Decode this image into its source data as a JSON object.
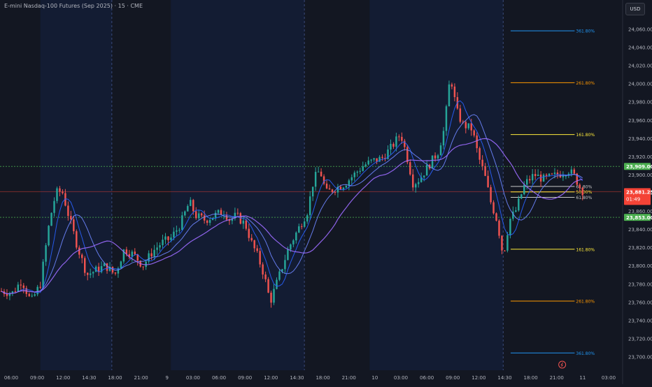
{
  "header": {
    "title": "E-mini Nasdaq-100 Futures (Sep 2025) · 15 · CME",
    "currency": "USD"
  },
  "colors": {
    "background": "#131722",
    "session_band": "#131c33",
    "up": "#26a69a",
    "down": "#ef5350",
    "ma_fast": "#2962ff",
    "ma_mid": "#6e86ff",
    "ma_slow": "#9c6bff",
    "fib_blue": "#2196f3",
    "fib_orange": "#ff9800",
    "fib_yellow": "#ffeb3b",
    "level_green": "#4caf50",
    "level_red": "#f44336"
  },
  "chart_data": {
    "type": "candlestick",
    "title": "E-mini Nasdaq-100 Futures (Sep 2025) · 15 · CME",
    "ylim": [
      23685,
      24075
    ],
    "y_ticks": [
      "23,700.00",
      "23,720.00",
      "23,740.00",
      "23,760.00",
      "23,780.00",
      "23,800.00",
      "23,820.00",
      "23,840.00",
      "23,860.00",
      "23,880.00",
      "23,900.00",
      "23,920.00",
      "23,940.00",
      "23,960.00",
      "23,980.00",
      "24,000.00",
      "24,020.00",
      "24,040.00",
      "24,060.00"
    ],
    "x_labels": [
      "06:00",
      "09:00",
      "12:00",
      "14:30",
      "18:00",
      "21:00",
      "9",
      "03:00",
      "06:00",
      "09:00",
      "12:00",
      "14:30",
      "18:00",
      "21:00",
      "10",
      "03:00",
      "06:00",
      "09:00",
      "12:00",
      "14:30",
      "18:00",
      "21:00",
      "11",
      "03:00"
    ],
    "current_price": "23,881.25",
    "countdown": "01:49",
    "horizontal_levels": [
      {
        "price": 23909,
        "label": "23,909.00",
        "color": "#4caf50",
        "style": "dotted"
      },
      {
        "price": 23853,
        "label": "23,853.00",
        "color": "#4caf50",
        "style": "dotted"
      },
      {
        "price": 23881.25,
        "label": "23,881.25",
        "color": "#f44336",
        "style": "solid"
      }
    ],
    "fib_levels": [
      {
        "label": "361.80%",
        "price": 24058,
        "color": "#2196f3"
      },
      {
        "label": "261.80%",
        "price": 24001,
        "color": "#ff9800"
      },
      {
        "label": "161.80%",
        "price": 23944,
        "color": "#ffeb3b"
      },
      {
        "label": "61.80%",
        "price": 23887,
        "color": "#c8c8c8"
      },
      {
        "label": "50.00%",
        "price": 23881,
        "color": "#ffeb3b"
      },
      {
        "label": "61.80%",
        "price": 23875,
        "color": "#c8c8c8"
      },
      {
        "label": "161.80%",
        "price": 23818,
        "color": "#ffeb3b"
      },
      {
        "label": "261.80%",
        "price": 23761,
        "color": "#ff9800"
      },
      {
        "label": "361.80%",
        "price": 23704,
        "color": "#2196f3"
      }
    ],
    "price_path": [
      [
        0,
        23772
      ],
      [
        0.02,
        23770
      ],
      [
        0.035,
        23784
      ],
      [
        0.05,
        23760
      ],
      [
        0.065,
        23780
      ],
      [
        0.08,
        23850
      ],
      [
        0.09,
        23880
      ],
      [
        0.1,
        23882
      ],
      [
        0.11,
        23856
      ],
      [
        0.125,
        23820
      ],
      [
        0.14,
        23790
      ],
      [
        0.155,
        23795
      ],
      [
        0.17,
        23800
      ],
      [
        0.185,
        23790
      ],
      [
        0.2,
        23818
      ],
      [
        0.215,
        23812
      ],
      [
        0.23,
        23800
      ],
      [
        0.245,
        23815
      ],
      [
        0.26,
        23825
      ],
      [
        0.275,
        23830
      ],
      [
        0.29,
        23845
      ],
      [
        0.305,
        23870
      ],
      [
        0.315,
        23855
      ],
      [
        0.33,
        23850
      ],
      [
        0.345,
        23855
      ],
      [
        0.36,
        23860
      ],
      [
        0.37,
        23850
      ],
      [
        0.38,
        23855
      ],
      [
        0.395,
        23845
      ],
      [
        0.405,
        23825
      ],
      [
        0.415,
        23810
      ],
      [
        0.425,
        23790
      ],
      [
        0.435,
        23760
      ],
      [
        0.445,
        23780
      ],
      [
        0.455,
        23800
      ],
      [
        0.465,
        23820
      ],
      [
        0.48,
        23840
      ],
      [
        0.495,
        23860
      ],
      [
        0.505,
        23895
      ],
      [
        0.515,
        23905
      ],
      [
        0.525,
        23880
      ],
      [
        0.54,
        23885
      ],
      [
        0.555,
        23890
      ],
      [
        0.57,
        23900
      ],
      [
        0.585,
        23910
      ],
      [
        0.6,
        23915
      ],
      [
        0.615,
        23918
      ],
      [
        0.63,
        23930
      ],
      [
        0.645,
        23945
      ],
      [
        0.655,
        23920
      ],
      [
        0.665,
        23890
      ],
      [
        0.675,
        23895
      ],
      [
        0.69,
        23910
      ],
      [
        0.705,
        23925
      ],
      [
        0.715,
        23950
      ],
      [
        0.725,
        24010
      ],
      [
        0.735,
        23970
      ],
      [
        0.745,
        23955
      ],
      [
        0.76,
        23950
      ],
      [
        0.77,
        23920
      ],
      [
        0.78,
        23900
      ],
      [
        0.79,
        23870
      ],
      [
        0.8,
        23850
      ],
      [
        0.81,
        23810
      ],
      [
        0.82,
        23850
      ],
      [
        0.83,
        23860
      ],
      [
        0.845,
        23890
      ],
      [
        0.86,
        23900
      ],
      [
        0.875,
        23895
      ],
      [
        0.89,
        23898
      ],
      [
        0.905,
        23902
      ],
      [
        0.915,
        23905
      ],
      [
        0.925,
        23898
      ],
      [
        0.935,
        23884
      ],
      [
        0.94,
        23881
      ]
    ]
  }
}
